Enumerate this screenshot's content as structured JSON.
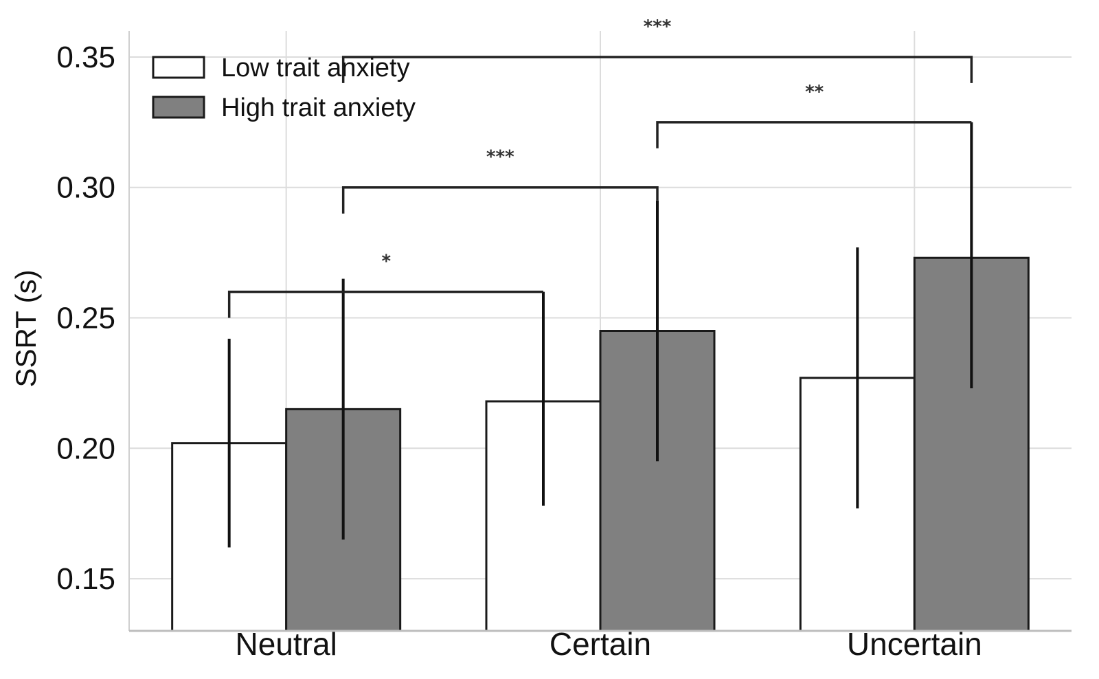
{
  "chart_data": {
    "type": "bar",
    "title": "",
    "xlabel": "",
    "ylabel": "SSRT (s)",
    "ylim": [
      0.13,
      0.36
    ],
    "yticks": [
      0.15,
      0.2,
      0.25,
      0.3,
      0.35
    ],
    "ytick_labels": [
      "0.15",
      "0.20",
      "0.25",
      "0.30",
      "0.35"
    ],
    "categories": [
      "Neutral",
      "Certain",
      "Uncertain"
    ],
    "grid": true,
    "legend_position": "top-left",
    "series": [
      {
        "name": "Low trait anxiety",
        "color": "#ffffff",
        "values": [
          0.202,
          0.218,
          0.227
        ],
        "error_low": [
          0.162,
          0.178,
          0.177
        ],
        "error_high": [
          0.242,
          0.26,
          0.277
        ]
      },
      {
        "name": "High trait anxiety",
        "color": "#808080",
        "values": [
          0.215,
          0.245,
          0.273
        ],
        "error_low": [
          0.165,
          0.195,
          0.223
        ],
        "error_high": [
          0.265,
          0.295,
          0.325
        ]
      }
    ],
    "significance": [
      {
        "label": "*",
        "from": [
          0,
          0
        ],
        "to": [
          1,
          0
        ],
        "y": 0.26,
        "from_drop": 0.25,
        "to_drop": 0.26
      },
      {
        "label": "***",
        "from": [
          0,
          1
        ],
        "to": [
          1,
          1
        ],
        "y": 0.3,
        "from_drop": 0.29,
        "to_drop": 0.295
      },
      {
        "label": "**",
        "from": [
          1,
          1
        ],
        "to": [
          2,
          1
        ],
        "y": 0.325,
        "from_drop": 0.315,
        "to_drop": 0.325
      },
      {
        "label": "***",
        "from": [
          0,
          1
        ],
        "to": [
          2,
          1
        ],
        "y": 0.35,
        "from_drop": 0.34,
        "to_drop": 0.34
      }
    ]
  }
}
